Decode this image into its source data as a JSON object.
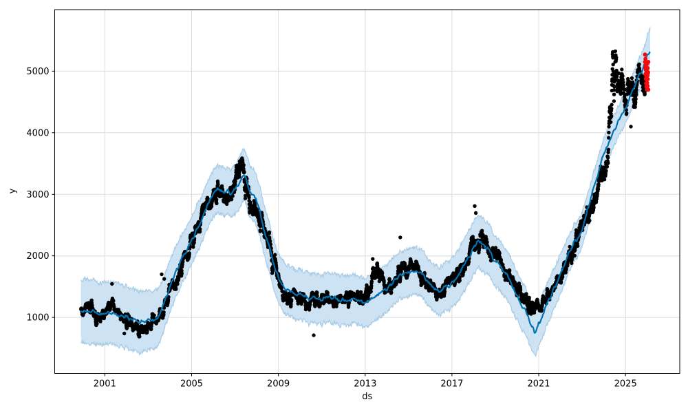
{
  "chart_data": {
    "type": "scatter",
    "subtype": "prophet-forecast (actuals + fitted line + uncertainty band + anomalies)",
    "title": "",
    "xlabel": "ds",
    "ylabel": "y",
    "xlim": [
      1998.69,
      2027.5
    ],
    "ylim": [
      90,
      6000
    ],
    "x_ticks": [
      2001,
      2005,
      2009,
      2013,
      2017,
      2021,
      2025
    ],
    "y_ticks": [
      1000,
      2000,
      3000,
      4000,
      5000
    ],
    "grid": true,
    "legend": "none",
    "colors": {
      "actual_points": "#000000",
      "forecast_line": "#0072B2",
      "uncertainty_band": "#cde2f2",
      "band_edge": "#a9cce6",
      "anomaly_points": "#f40b0b",
      "grid": "#dcdcdc",
      "spine": "#000000"
    },
    "marker": {
      "actual_radius_px": 2.7,
      "anomaly_radius_px": 3.0
    },
    "series": [
      {
        "name": "forecast_trend_yhat_with_band",
        "points_t_yhat_halfwidth": [
          [
            1999.9,
            1110,
            520
          ],
          [
            2000.5,
            1080,
            510
          ],
          [
            2001,
            1060,
            505
          ],
          [
            2001.5,
            1070,
            505
          ],
          [
            2002,
            1000,
            500
          ],
          [
            2002.5,
            935,
            495
          ],
          [
            2003,
            950,
            480
          ],
          [
            2003.5,
            1035,
            455
          ],
          [
            2004,
            1500,
            420
          ],
          [
            2004.5,
            1900,
            400
          ],
          [
            2005,
            2250,
            385
          ],
          [
            2005.5,
            2630,
            380
          ],
          [
            2006,
            2980,
            380
          ],
          [
            2006.3,
            3080,
            380
          ],
          [
            2006.6,
            3040,
            380
          ],
          [
            2007,
            3060,
            400
          ],
          [
            2007.4,
            3300,
            420
          ],
          [
            2007.7,
            3060,
            420
          ],
          [
            2008,
            2870,
            405
          ],
          [
            2008.5,
            2230,
            400
          ],
          [
            2009,
            1640,
            400
          ],
          [
            2009.5,
            1420,
            400
          ],
          [
            2010,
            1360,
            400
          ],
          [
            2010.5,
            1310,
            400
          ],
          [
            2011,
            1295,
            400
          ],
          [
            2011.5,
            1320,
            400
          ],
          [
            2012,
            1265,
            400
          ],
          [
            2012.5,
            1295,
            400
          ],
          [
            2013,
            1235,
            400
          ],
          [
            2013.5,
            1355,
            390
          ],
          [
            2014,
            1470,
            385
          ],
          [
            2014.5,
            1650,
            380
          ],
          [
            2015,
            1715,
            380
          ],
          [
            2015.3,
            1755,
            380
          ],
          [
            2015.7,
            1680,
            380
          ],
          [
            2016,
            1535,
            380
          ],
          [
            2016.3,
            1455,
            380
          ],
          [
            2016.7,
            1500,
            390
          ],
          [
            2017,
            1565,
            400
          ],
          [
            2017.5,
            1800,
            420
          ],
          [
            2018,
            2110,
            430
          ],
          [
            2018.25,
            2215,
            430
          ],
          [
            2018.6,
            2130,
            420
          ],
          [
            2019,
            1905,
            410
          ],
          [
            2019.5,
            1710,
            400
          ],
          [
            2020,
            1360,
            390
          ],
          [
            2020.4,
            1090,
            380
          ],
          [
            2020.8,
            782,
            375
          ],
          [
            2021,
            900,
            360
          ],
          [
            2021.5,
            1300,
            340
          ],
          [
            2022,
            1700,
            320
          ],
          [
            2022.5,
            2120,
            300
          ],
          [
            2023,
            2450,
            280
          ],
          [
            2023.5,
            3050,
            260
          ],
          [
            2024,
            3650,
            250
          ],
          [
            2024.5,
            4060,
            248
          ],
          [
            2025,
            4420,
            250
          ],
          [
            2025.5,
            4820,
            265
          ],
          [
            2025.9,
            5120,
            300
          ],
          [
            2026.15,
            5340,
            390
          ]
        ]
      },
      {
        "name": "actual_observations_centerline",
        "points_t_value_spread": [
          [
            1999.9,
            1120,
            100
          ],
          [
            2000.3,
            1190,
            100
          ],
          [
            2000.6,
            1010,
            110
          ],
          [
            2001,
            1090,
            110
          ],
          [
            2001.3,
            1230,
            90
          ],
          [
            2001.6,
            1090,
            100
          ],
          [
            2002,
            950,
            110
          ],
          [
            2002.4,
            860,
            110
          ],
          [
            2002.7,
            790,
            110
          ],
          [
            2003,
            880,
            100
          ],
          [
            2003.4,
            1010,
            100
          ],
          [
            2003.7,
            1120,
            110
          ],
          [
            2004,
            1450,
            110
          ],
          [
            2004.4,
            1700,
            130
          ],
          [
            2004.8,
            2050,
            140
          ],
          [
            2005.2,
            2400,
            150
          ],
          [
            2005.6,
            2750,
            150
          ],
          [
            2006,
            2950,
            170
          ],
          [
            2006.3,
            3060,
            170
          ],
          [
            2006.6,
            2830,
            200
          ],
          [
            2007,
            3180,
            230
          ],
          [
            2007.15,
            3650,
            330
          ],
          [
            2007.35,
            3330,
            260
          ],
          [
            2007.6,
            3020,
            200
          ],
          [
            2008,
            2680,
            200
          ],
          [
            2008.4,
            2400,
            200
          ],
          [
            2008.8,
            1850,
            200
          ],
          [
            2009.2,
            1380,
            130
          ],
          [
            2009.6,
            1320,
            120
          ],
          [
            2010,
            1310,
            120
          ],
          [
            2010.4,
            1260,
            120
          ],
          [
            2010.8,
            1330,
            130
          ],
          [
            2011.2,
            1290,
            110
          ],
          [
            2011.6,
            1310,
            110
          ],
          [
            2012,
            1260,
            110
          ],
          [
            2012.4,
            1320,
            110
          ],
          [
            2012.8,
            1300,
            120
          ],
          [
            2013.1,
            1400,
            150
          ],
          [
            2013.45,
            1790,
            170
          ],
          [
            2013.8,
            1560,
            150
          ],
          [
            2014.1,
            1470,
            140
          ],
          [
            2014.5,
            1690,
            140
          ],
          [
            2014.9,
            1790,
            130
          ],
          [
            2015.3,
            1790,
            130
          ],
          [
            2015.7,
            1630,
            130
          ],
          [
            2016,
            1460,
            120
          ],
          [
            2016.4,
            1390,
            120
          ],
          [
            2016.8,
            1500,
            120
          ],
          [
            2017.2,
            1630,
            130
          ],
          [
            2017.6,
            1890,
            150
          ],
          [
            2018,
            2190,
            170
          ],
          [
            2018.3,
            2270,
            200
          ],
          [
            2018.7,
            2120,
            160
          ],
          [
            2019,
            1960,
            150
          ],
          [
            2019.4,
            1790,
            140
          ],
          [
            2019.8,
            1580,
            140
          ],
          [
            2020.2,
            1330,
            130
          ],
          [
            2020.6,
            1180,
            120
          ],
          [
            2021,
            1160,
            110
          ],
          [
            2021.4,
            1330,
            120
          ],
          [
            2021.8,
            1570,
            140
          ],
          [
            2022.2,
            1780,
            150
          ],
          [
            2022.6,
            2150,
            170
          ],
          [
            2023,
            2450,
            170
          ],
          [
            2023.4,
            2750,
            180
          ],
          [
            2023.8,
            3150,
            200
          ],
          [
            2024.1,
            3550,
            230
          ],
          [
            2024.45,
            4900,
            400
          ],
          [
            2024.7,
            4800,
            350
          ],
          [
            2025,
            4550,
            260
          ],
          [
            2025.25,
            4500,
            330
          ],
          [
            2025.6,
            4900,
            250
          ],
          [
            2025.95,
            4800,
            300
          ]
        ],
        "outliers_t_value": [
          [
            2001.33,
            1545
          ],
          [
            2001.9,
            740
          ],
          [
            2003.62,
            1700
          ],
          [
            2003.74,
            1625
          ],
          [
            2010.63,
            710
          ],
          [
            2013.35,
            1950
          ],
          [
            2014.62,
            2300
          ],
          [
            2018.05,
            2810
          ],
          [
            2018.1,
            2695
          ],
          [
            2025.25,
            4100
          ]
        ]
      },
      {
        "name": "anomaly_points_red",
        "points_t_value": [
          [
            2025.9,
            5270
          ],
          [
            2025.9,
            5150
          ],
          [
            2025.91,
            5060
          ],
          [
            2025.92,
            5200
          ],
          [
            2025.92,
            4950
          ],
          [
            2025.93,
            5100
          ],
          [
            2025.94,
            4880
          ],
          [
            2025.94,
            5020
          ],
          [
            2025.95,
            4800
          ],
          [
            2025.96,
            4930
          ],
          [
            2025.96,
            5070
          ],
          [
            2025.97,
            4750
          ],
          [
            2025.98,
            4860
          ],
          [
            2025.98,
            5000
          ],
          [
            2025.99,
            4700
          ],
          [
            2026.0,
            4810
          ],
          [
            2026.0,
            5120
          ],
          [
            2026.01,
            4930
          ],
          [
            2026.02,
            4760
          ],
          [
            2026.02,
            5050
          ],
          [
            2026.03,
            4870
          ],
          [
            2026.04,
            4980
          ],
          [
            2026.05,
            4700
          ],
          [
            2026.05,
            5150
          ]
        ]
      }
    ]
  }
}
